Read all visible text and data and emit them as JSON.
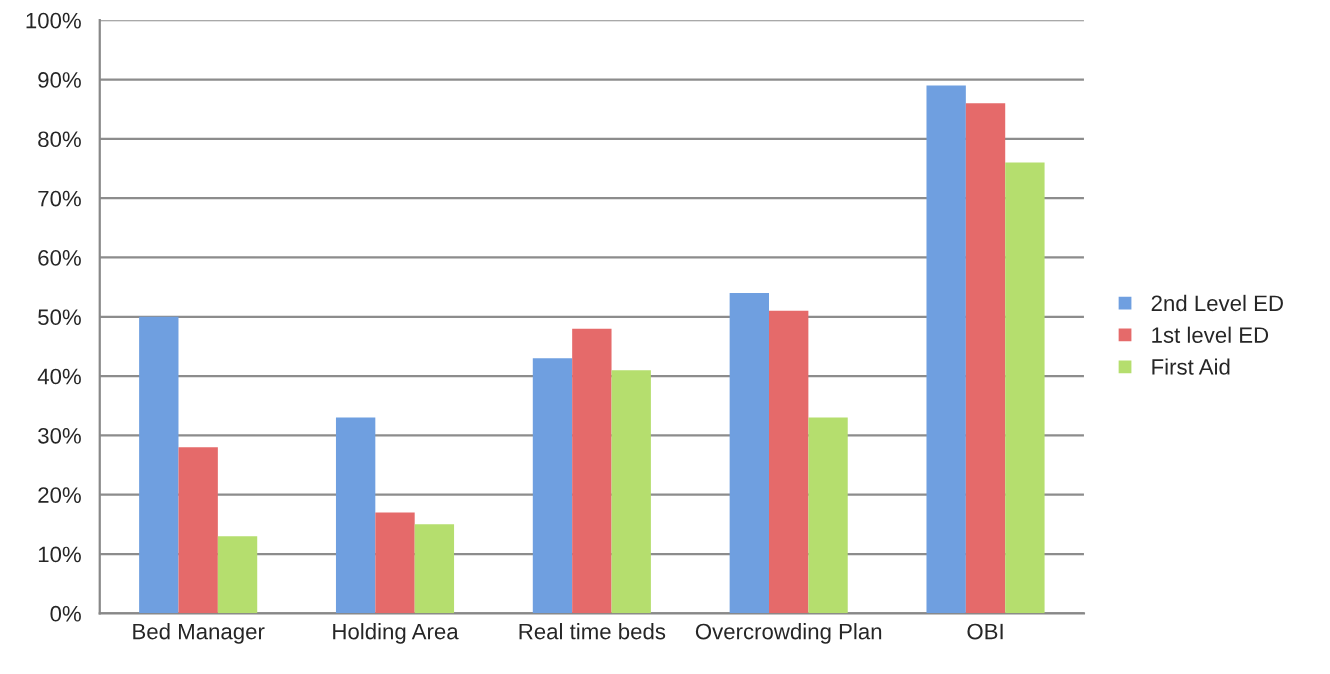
{
  "chart_data": {
    "type": "bar",
    "categories": [
      "Bed Manager",
      "Holding Area",
      "Real time beds",
      "Overcrowding Plan",
      "OBI"
    ],
    "series": [
      {
        "name": "2nd Level ED",
        "color": "#6f9fe0",
        "values": [
          50,
          33,
          43,
          54,
          89
        ]
      },
      {
        "name": "1st level ED",
        "color": "#e56a6a",
        "values": [
          28,
          17,
          48,
          51,
          86
        ]
      },
      {
        "name": "First Aid",
        "color": "#b5de6e",
        "values": [
          13,
          15,
          41,
          33,
          76
        ]
      }
    ],
    "ylim": [
      0,
      100
    ],
    "yticks": [
      {
        "value": 0,
        "label": "0%"
      },
      {
        "value": 10,
        "label": "10%"
      },
      {
        "value": 20,
        "label": "20%"
      },
      {
        "value": 30,
        "label": "30%"
      },
      {
        "value": 40,
        "label": "40%"
      },
      {
        "value": 50,
        "label": "50%"
      },
      {
        "value": 60,
        "label": "60%"
      },
      {
        "value": 70,
        "label": "70%"
      },
      {
        "value": 80,
        "label": "80%"
      },
      {
        "value": 90,
        "label": "90%"
      },
      {
        "value": 100,
        "label": "100%"
      }
    ],
    "grid": "y",
    "legend": "right"
  }
}
